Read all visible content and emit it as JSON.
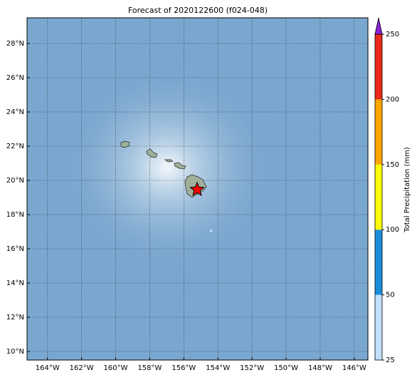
{
  "title": "Forecast of 2020122600 (f024-048)",
  "map": {
    "xlim": [
      -165.2,
      -145.2
    ],
    "ylim": [
      9.5,
      29.5
    ],
    "grid": true,
    "xticks": [
      {
        "value": -164,
        "label": "164°W"
      },
      {
        "value": -162,
        "label": "162°W"
      },
      {
        "value": -160,
        "label": "160°W"
      },
      {
        "value": -158,
        "label": "158°W"
      },
      {
        "value": -156,
        "label": "156°W"
      },
      {
        "value": -154,
        "label": "154°W"
      },
      {
        "value": -152,
        "label": "152°W"
      },
      {
        "value": -150,
        "label": "150°W"
      },
      {
        "value": -148,
        "label": "148°W"
      },
      {
        "value": -146,
        "label": "146°W"
      }
    ],
    "yticks": [
      {
        "value": 10,
        "label": "10°N"
      },
      {
        "value": 12,
        "label": "12°N"
      },
      {
        "value": 14,
        "label": "14°N"
      },
      {
        "value": 16,
        "label": "16°N"
      },
      {
        "value": 18,
        "label": "18°N"
      },
      {
        "value": 20,
        "label": "20°N"
      },
      {
        "value": 22,
        "label": "22°N"
      },
      {
        "value": 24,
        "label": "24°N"
      },
      {
        "value": 26,
        "label": "26°N"
      },
      {
        "value": 28,
        "label": "28°N"
      }
    ]
  },
  "colorbar": {
    "label": "Total Precipitation (mm)",
    "ticks": [
      25,
      50,
      100,
      150,
      200,
      250
    ],
    "colors": [
      "#c4e0ff",
      "#1a8ddb",
      "#ffff00",
      "#ffa500",
      "#e8291c"
    ],
    "extend_color": "#8b20d8"
  }
}
